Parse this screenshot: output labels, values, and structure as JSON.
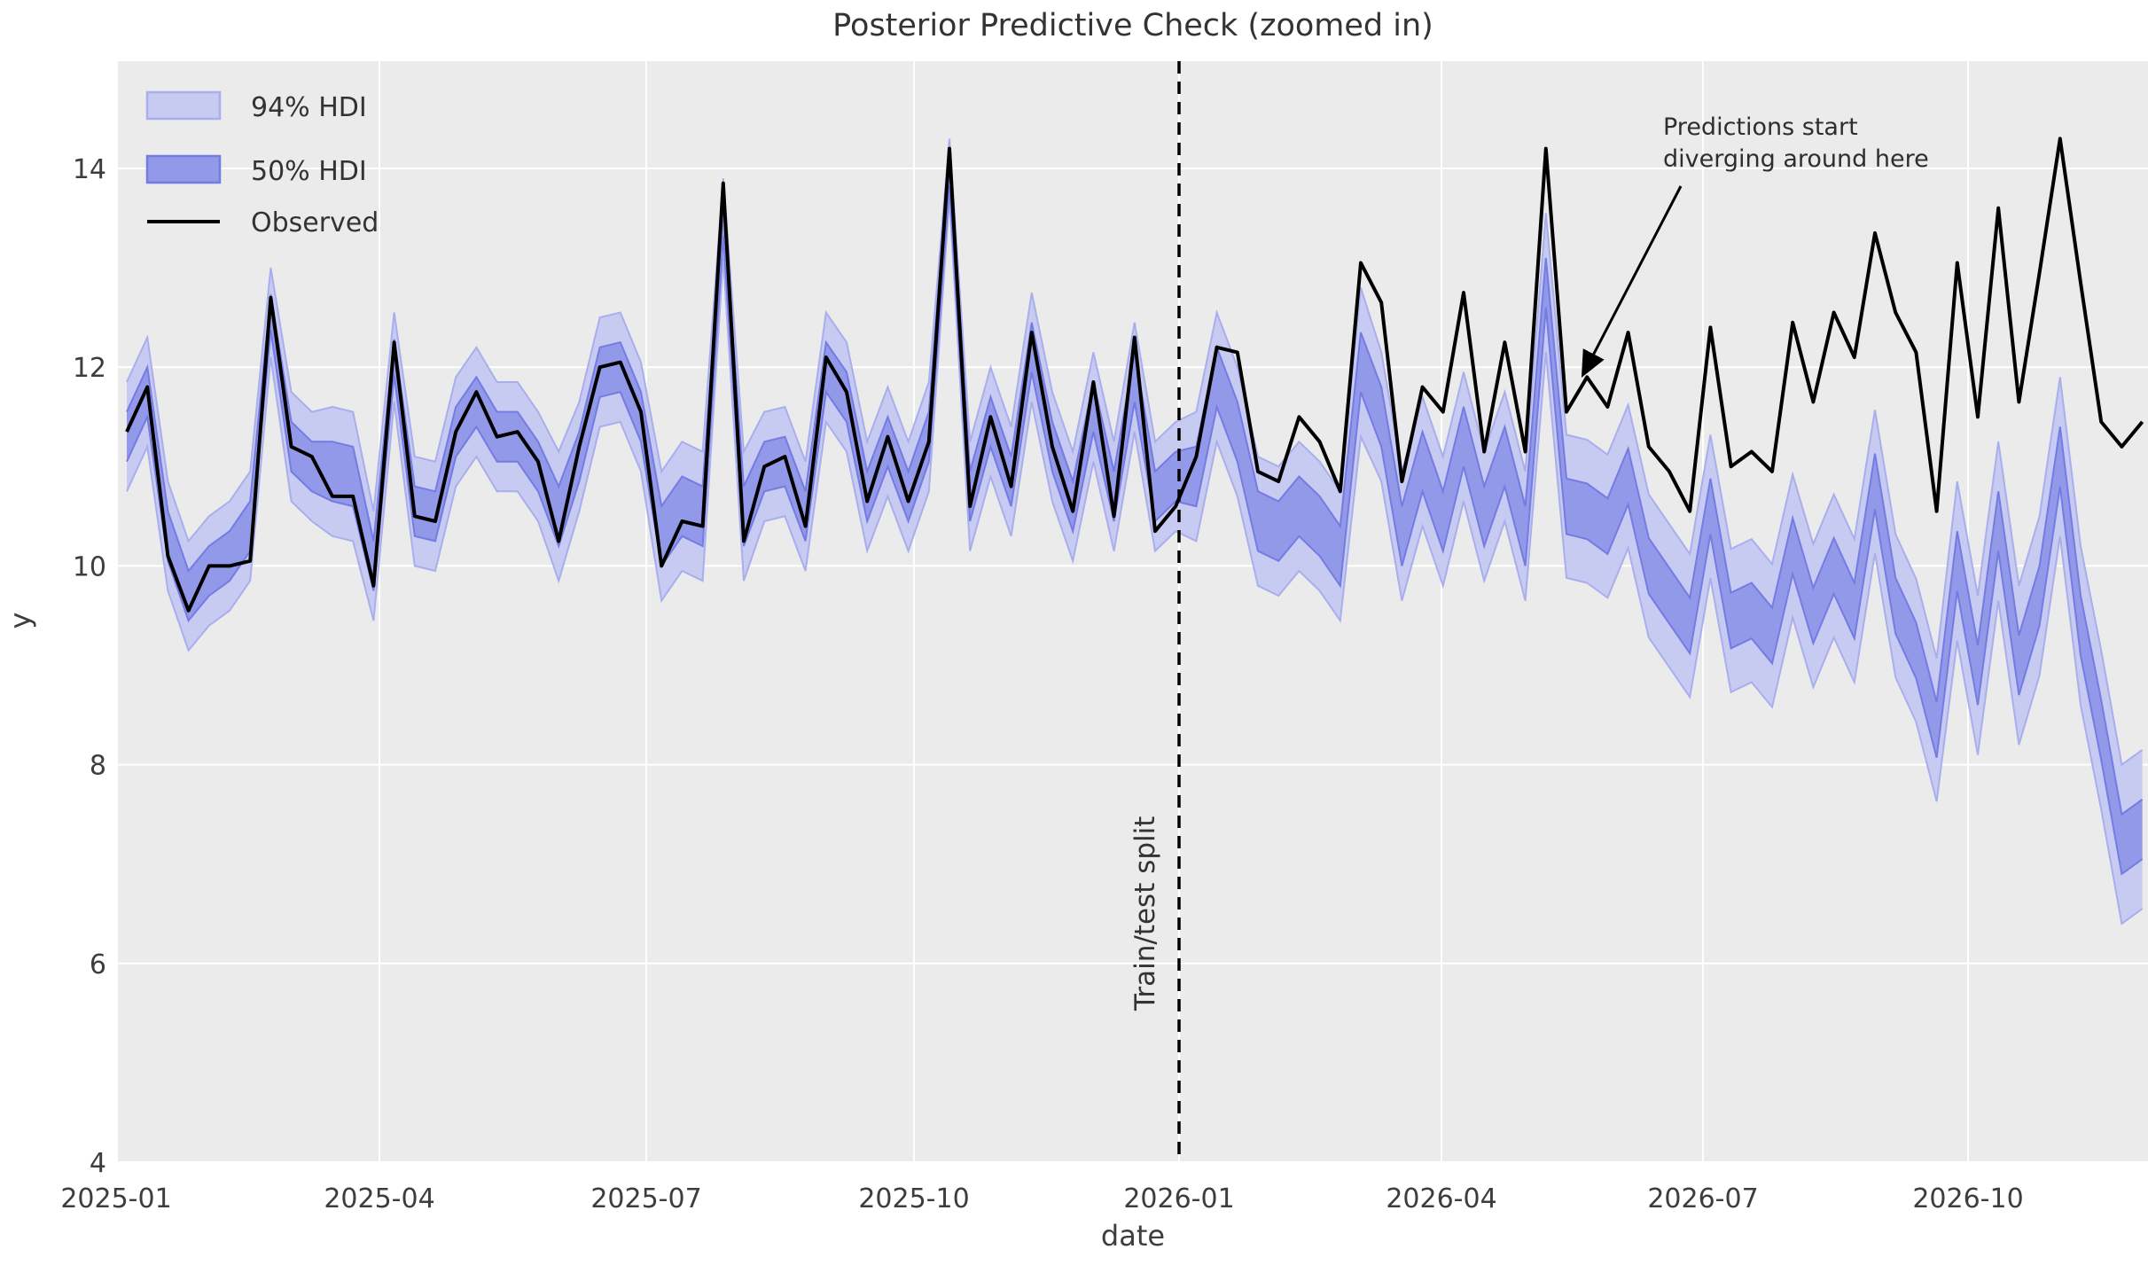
{
  "title": "Posterior Predictive Check (zoomed in)",
  "legend": {
    "hdi94_label": "94% HDI",
    "hdi50_label": "50% HDI",
    "observed_label": "Observed"
  },
  "annotation": {
    "line1": "Predictions start",
    "line2": "diverging around here"
  },
  "split_label": "Train/test split",
  "axes": {
    "x": {
      "label": "date",
      "tick_labels": [
        "2025-01",
        "2025-04",
        "2025-07",
        "2025-10",
        "2026-01",
        "2026-04",
        "2026-07",
        "2026-10"
      ]
    },
    "y": {
      "label": "y",
      "tick_labels": [
        "4",
        "6",
        "8",
        "10",
        "12",
        "14"
      ]
    }
  },
  "colors": {
    "plot_background": "#ebebeb",
    "grid": "#ffffff",
    "observed_line": "#000000",
    "hdi94_fill": "#c7caf1",
    "hdi94_edge": "#a9aeec",
    "hdi50_fill": "#9399e9",
    "hdi50_edge": "#747be2",
    "split_line": "#000000",
    "text": "#333333"
  },
  "chart_data": {
    "type": "line",
    "title": "Posterior Predictive Check (zoomed in)",
    "xlabel": "date",
    "ylabel": "y",
    "ylim": [
      4,
      15.1
    ],
    "grid": true,
    "legend_position": "upper left",
    "split_date": "2026-01-01",
    "x": [
      "2025-01-05",
      "2025-01-12",
      "2025-01-19",
      "2025-01-26",
      "2025-02-02",
      "2025-02-09",
      "2025-02-16",
      "2025-02-23",
      "2025-03-02",
      "2025-03-09",
      "2025-03-16",
      "2025-03-23",
      "2025-03-30",
      "2025-04-06",
      "2025-04-13",
      "2025-04-20",
      "2025-04-27",
      "2025-05-04",
      "2025-05-11",
      "2025-05-18",
      "2025-05-25",
      "2025-06-01",
      "2025-06-08",
      "2025-06-15",
      "2025-06-22",
      "2025-06-29",
      "2025-07-06",
      "2025-07-13",
      "2025-07-20",
      "2025-07-27",
      "2025-08-03",
      "2025-08-10",
      "2025-08-17",
      "2025-08-24",
      "2025-08-31",
      "2025-09-07",
      "2025-09-14",
      "2025-09-21",
      "2025-09-28",
      "2025-10-05",
      "2025-10-12",
      "2025-10-19",
      "2025-10-26",
      "2025-11-02",
      "2025-11-09",
      "2025-11-16",
      "2025-11-23",
      "2025-11-30",
      "2025-12-07",
      "2025-12-14",
      "2025-12-21",
      "2025-12-28",
      "2026-01-04",
      "2026-01-11",
      "2026-01-18",
      "2026-01-25",
      "2026-02-01",
      "2026-02-08",
      "2026-02-15",
      "2026-02-22",
      "2026-03-01",
      "2026-03-08",
      "2026-03-15",
      "2026-03-22",
      "2026-03-29",
      "2026-04-05",
      "2026-04-12",
      "2026-04-19",
      "2026-04-26",
      "2026-05-03",
      "2026-05-10",
      "2026-05-17",
      "2026-05-24",
      "2026-05-31",
      "2026-06-07",
      "2026-06-14",
      "2026-06-21",
      "2026-06-28",
      "2026-07-05",
      "2026-07-12",
      "2026-07-19",
      "2026-07-26",
      "2026-08-02",
      "2026-08-09",
      "2026-08-16",
      "2026-08-23",
      "2026-08-30",
      "2026-09-06",
      "2026-09-13",
      "2026-09-20",
      "2026-09-27",
      "2026-10-04",
      "2026-10-11",
      "2026-10-18",
      "2026-10-25",
      "2026-11-01",
      "2026-11-08",
      "2026-11-15",
      "2026-11-22"
    ],
    "observed": [
      11.35,
      11.8,
      10.1,
      9.55,
      10.0,
      10.0,
      10.05,
      12.7,
      11.2,
      11.1,
      10.7,
      10.7,
      9.8,
      12.25,
      10.5,
      10.45,
      11.35,
      11.75,
      11.3,
      11.35,
      11.05,
      10.25,
      11.2,
      12.0,
      12.05,
      11.55,
      10.0,
      10.45,
      10.4,
      13.85,
      10.25,
      11.0,
      11.1,
      10.4,
      12.1,
      11.75,
      10.65,
      11.3,
      10.65,
      11.25,
      14.2,
      10.6,
      11.5,
      10.8,
      12.35,
      11.2,
      10.55,
      11.85,
      10.5,
      12.3,
      10.35,
      10.6,
      11.1,
      12.2,
      12.15,
      10.95,
      10.85,
      11.5,
      11.25,
      10.75,
      13.05,
      12.65,
      10.85,
      11.8,
      11.55,
      12.75,
      11.15,
      12.25,
      11.15,
      14.2,
      11.55,
      11.9,
      11.6,
      12.35,
      11.2,
      10.95,
      10.55,
      12.4,
      11.0,
      11.15,
      10.95,
      12.45,
      11.65,
      12.55,
      12.1,
      13.35,
      12.55,
      12.15,
      10.55,
      13.05,
      11.5,
      13.6,
      11.65,
      12.95,
      14.3,
      12.85,
      11.45,
      11.2,
      11.45
    ],
    "hdi": {
      "center": [
        11.3,
        11.75,
        10.3,
        9.7,
        9.95,
        10.1,
        10.4,
        12.55,
        11.2,
        11.0,
        10.95,
        10.9,
        10.0,
        12.1,
        10.55,
        10.5,
        11.35,
        11.65,
        11.3,
        11.3,
        11.0,
        10.5,
        11.1,
        11.95,
        12.0,
        11.5,
        10.3,
        10.6,
        10.5,
        13.5,
        10.5,
        11.0,
        11.05,
        10.5,
        12.0,
        11.7,
        10.7,
        11.25,
        10.7,
        11.3,
        14.0,
        10.7,
        11.45,
        10.85,
        12.2,
        11.2,
        10.6,
        11.6,
        10.7,
        11.9,
        10.7,
        10.9,
        10.9,
        11.9,
        11.35,
        10.45,
        10.35,
        10.6,
        10.4,
        10.1,
        12.05,
        11.5,
        10.3,
        11.05,
        10.45,
        11.3,
        10.5,
        11.1,
        10.3,
        12.85,
        10.6,
        10.55,
        10.4,
        10.9,
        10.0,
        9.7,
        9.4,
        10.6,
        9.45,
        9.55,
        9.3,
        10.2,
        9.5,
        10.0,
        9.55,
        10.85,
        9.6,
        9.15,
        8.35,
        10.05,
        8.9,
        10.45,
        9.0,
        9.7,
        11.1,
        9.4,
        8.35,
        7.2,
        7.35
      ],
      "hw50": [
        0.25,
        0.25,
        0.25,
        0.25,
        0.25,
        0.25,
        0.25,
        0.18,
        0.25,
        0.25,
        0.3,
        0.3,
        0.25,
        0.18,
        0.25,
        0.25,
        0.25,
        0.25,
        0.25,
        0.25,
        0.25,
        0.3,
        0.25,
        0.25,
        0.25,
        0.25,
        0.3,
        0.3,
        0.3,
        0.18,
        0.3,
        0.25,
        0.25,
        0.25,
        0.25,
        0.25,
        0.25,
        0.25,
        0.25,
        0.25,
        0.18,
        0.25,
        0.25,
        0.25,
        0.25,
        0.25,
        0.25,
        0.25,
        0.25,
        0.25,
        0.25,
        0.25,
        0.3,
        0.3,
        0.3,
        0.3,
        0.3,
        0.3,
        0.3,
        0.3,
        0.3,
        0.3,
        0.3,
        0.3,
        0.3,
        0.3,
        0.3,
        0.3,
        0.3,
        0.25,
        0.28,
        0.28,
        0.28,
        0.28,
        0.28,
        0.28,
        0.28,
        0.28,
        0.28,
        0.28,
        0.28,
        0.28,
        0.28,
        0.28,
        0.28,
        0.28,
        0.28,
        0.28,
        0.28,
        0.3,
        0.3,
        0.3,
        0.3,
        0.3,
        0.3,
        0.3,
        0.3,
        0.3,
        0.3
      ],
      "hw94": [
        0.55,
        0.55,
        0.55,
        0.55,
        0.55,
        0.55,
        0.55,
        0.45,
        0.55,
        0.55,
        0.65,
        0.65,
        0.55,
        0.45,
        0.55,
        0.55,
        0.55,
        0.55,
        0.55,
        0.55,
        0.55,
        0.65,
        0.55,
        0.55,
        0.55,
        0.55,
        0.65,
        0.65,
        0.65,
        0.4,
        0.65,
        0.55,
        0.55,
        0.55,
        0.55,
        0.55,
        0.55,
        0.55,
        0.55,
        0.55,
        0.3,
        0.55,
        0.55,
        0.55,
        0.55,
        0.55,
        0.55,
        0.55,
        0.55,
        0.55,
        0.55,
        0.55,
        0.65,
        0.65,
        0.65,
        0.65,
        0.65,
        0.65,
        0.65,
        0.65,
        0.75,
        0.65,
        0.65,
        0.65,
        0.65,
        0.65,
        0.65,
        0.65,
        0.65,
        0.7,
        0.72,
        0.72,
        0.72,
        0.72,
        0.72,
        0.72,
        0.72,
        0.72,
        0.72,
        0.72,
        0.72,
        0.72,
        0.72,
        0.72,
        0.72,
        0.72,
        0.72,
        0.72,
        0.72,
        0.8,
        0.8,
        0.8,
        0.8,
        0.8,
        0.8,
        0.8,
        0.8,
        0.8,
        0.8
      ]
    }
  }
}
